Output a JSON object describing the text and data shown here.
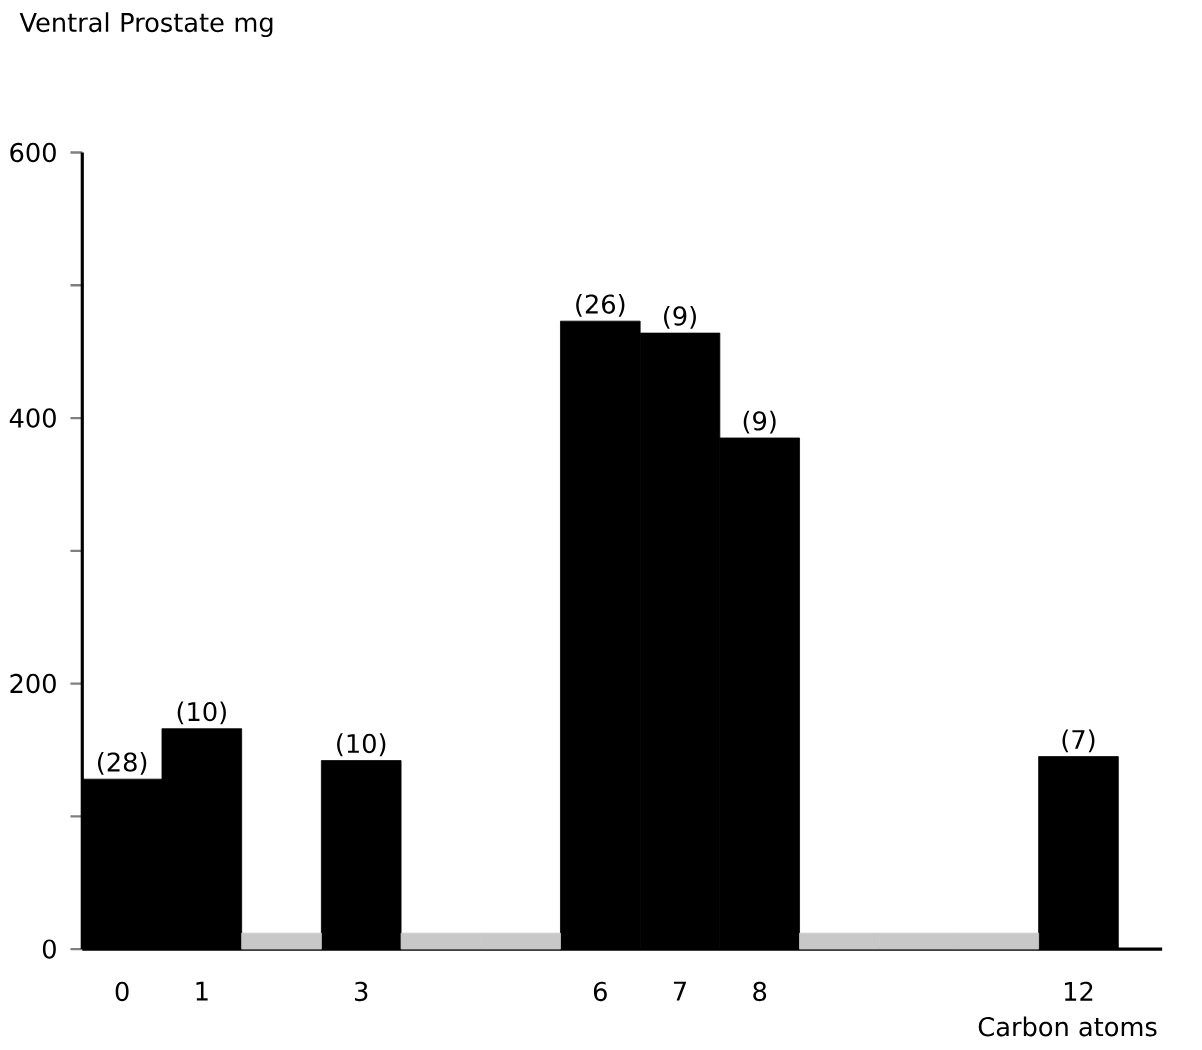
{
  "chart_data": {
    "type": "bar",
    "ylabel": "Ventral Prostate mg",
    "xlabel": "Carbon atoms",
    "categories": [
      "0",
      "1",
      null,
      "3",
      null,
      null,
      "6",
      "7",
      "8",
      null,
      null,
      null,
      "12"
    ],
    "series": [
      {
        "color": "#000000",
        "values": [
          128,
          166,
          null,
          142,
          null,
          null,
          473,
          464,
          385,
          null,
          null,
          null,
          145
        ]
      },
      {
        "color": "#c8c8c8",
        "values": [
          null,
          null,
          12,
          null,
          12,
          12,
          null,
          null,
          null,
          12,
          12,
          12,
          null
        ]
      }
    ],
    "ylim": [
      0,
      600
    ],
    "yticks": [
      0,
      {
        "value": 100,
        "label": null
      },
      200,
      {
        "value": 300,
        "label": null
      },
      400,
      {
        "value": 500,
        "label": null
      },
      600
    ],
    "annotations": [
      {
        "text": "(28)",
        "x": "0",
        "y": 128
      },
      {
        "text": "(10)",
        "x": "1",
        "y": 166
      },
      {
        "text": "(10)",
        "x": "3",
        "y": 142
      },
      {
        "text": "(26)",
        "x": "6",
        "y": 473
      },
      {
        "text": "(9)",
        "x": "7",
        "y": 464
      },
      {
        "text": "(9)",
        "x": "8",
        "y": 385
      },
      {
        "text": "(7)",
        "x": "12",
        "y": 145
      }
    ]
  }
}
